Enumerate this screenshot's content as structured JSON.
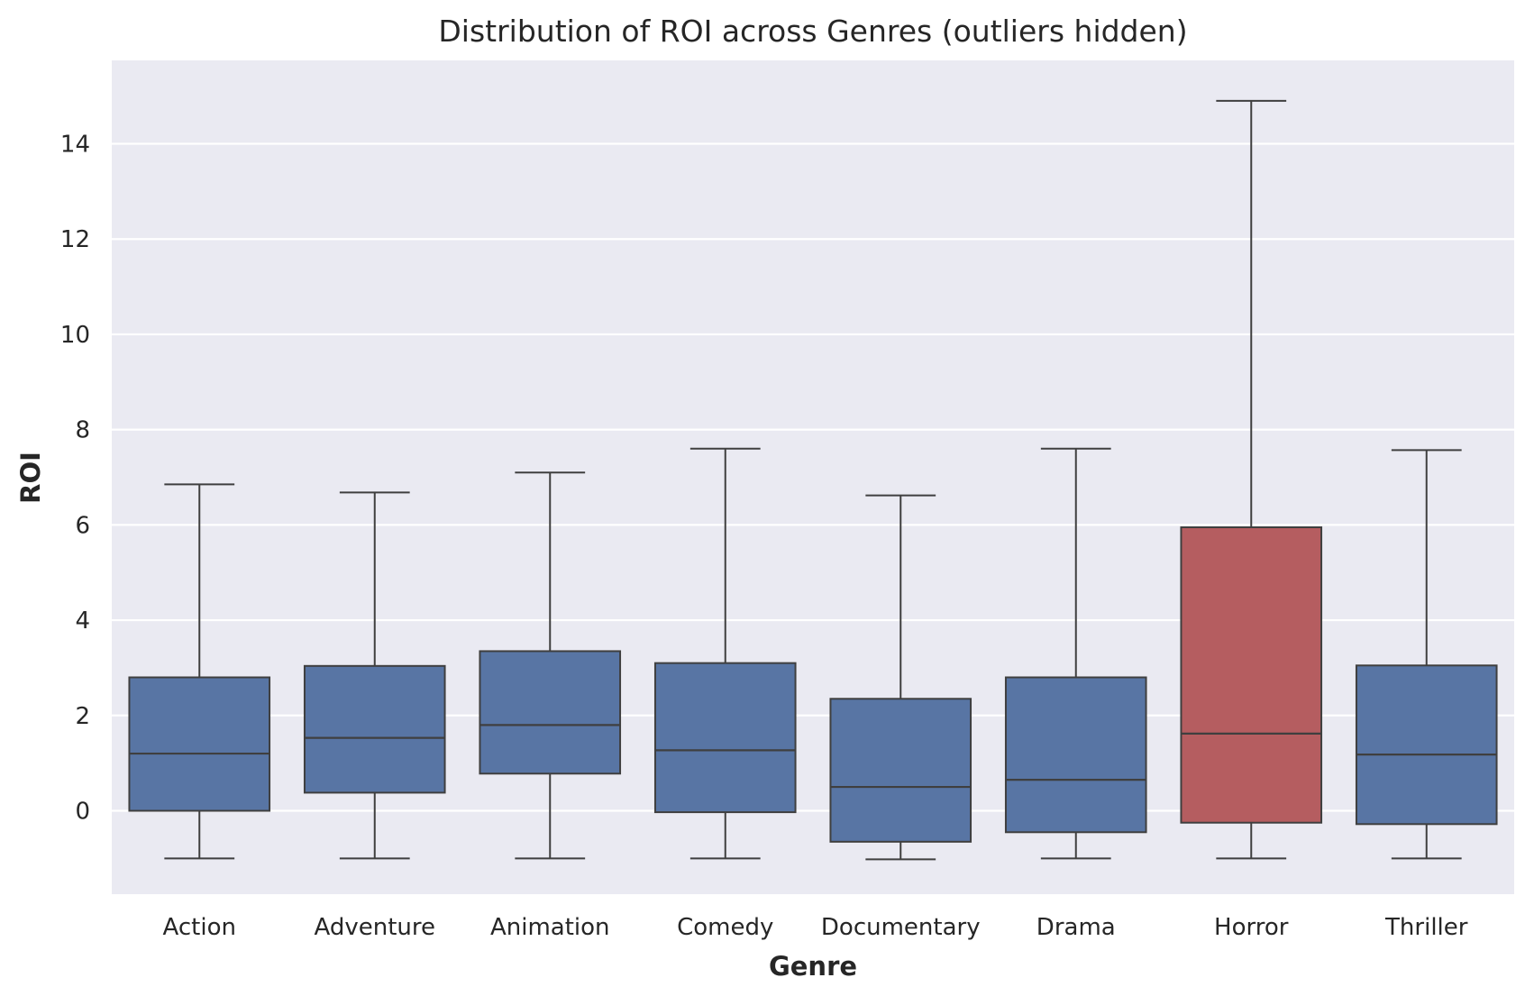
{
  "chart_data": {
    "type": "box",
    "title": "Distribution of ROI across Genres (outliers hidden)",
    "xlabel": "Genre",
    "ylabel": "ROI",
    "ylim": [
      -1.75,
      15.75
    ],
    "yticks": [
      0,
      2,
      4,
      6,
      8,
      10,
      12,
      14
    ],
    "grid": true,
    "legend": "none",
    "colors": {
      "default": "#5875a4",
      "highlight": "#b55d60",
      "line": "#3f3f3f",
      "plot_bg": "#eaeaf2",
      "grid": "#ffffff"
    },
    "categories": [
      "Action",
      "Adventure",
      "Animation",
      "Comedy",
      "Documentary",
      "Drama",
      "Horror",
      "Thriller"
    ],
    "boxes": [
      {
        "category": "Action",
        "whislo": -1.0,
        "q1": 0.0,
        "median": 1.2,
        "q3": 2.8,
        "whishi": 6.85,
        "color": "#5875a4"
      },
      {
        "category": "Adventure",
        "whislo": -1.0,
        "q1": 0.38,
        "median": 1.53,
        "q3": 3.04,
        "whishi": 6.68,
        "color": "#5875a4"
      },
      {
        "category": "Animation",
        "whislo": -1.0,
        "q1": 0.78,
        "median": 1.8,
        "q3": 3.35,
        "whishi": 7.1,
        "color": "#5875a4"
      },
      {
        "category": "Comedy",
        "whislo": -1.0,
        "q1": -0.03,
        "median": 1.27,
        "q3": 3.1,
        "whishi": 7.6,
        "color": "#5875a4"
      },
      {
        "category": "Documentary",
        "whislo": -1.02,
        "q1": -0.65,
        "median": 0.5,
        "q3": 2.35,
        "whishi": 6.62,
        "color": "#5875a4"
      },
      {
        "category": "Drama",
        "whislo": -1.0,
        "q1": -0.45,
        "median": 0.65,
        "q3": 2.8,
        "whishi": 7.6,
        "color": "#5875a4"
      },
      {
        "category": "Horror",
        "whislo": -1.0,
        "q1": -0.25,
        "median": 1.62,
        "q3": 5.95,
        "whishi": 14.9,
        "color": "#b55d60"
      },
      {
        "category": "Thriller",
        "whislo": -1.0,
        "q1": -0.28,
        "median": 1.18,
        "q3": 3.05,
        "whishi": 7.57,
        "color": "#5875a4"
      }
    ]
  }
}
